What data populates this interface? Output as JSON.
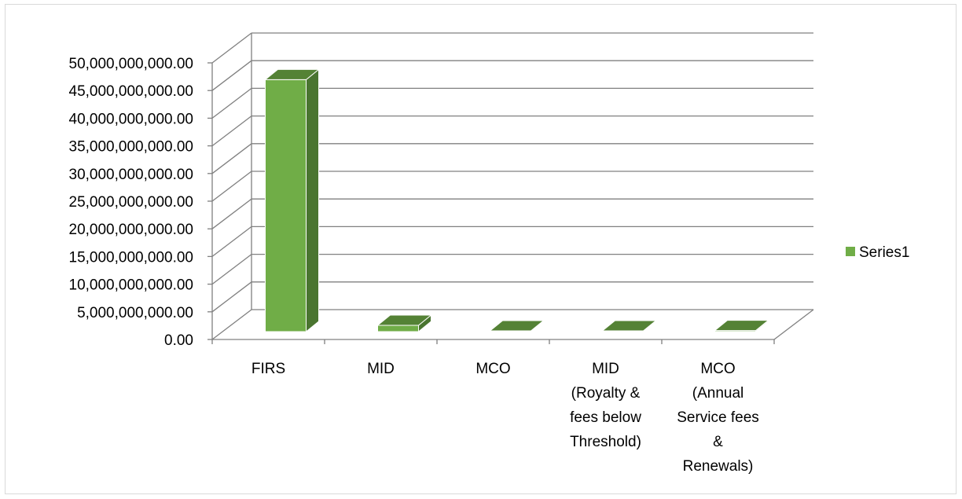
{
  "chart_data": {
    "type": "bar",
    "style": "3d-column",
    "categories": [
      [
        "FIRS"
      ],
      [
        "MID"
      ],
      [
        "MCO"
      ],
      [
        "MID",
        "(Royalty &",
        "fees below",
        "Threshold)"
      ],
      [
        "MCO",
        "(Annual",
        "Service fees",
        "&",
        "Renewals)"
      ]
    ],
    "series": [
      {
        "name": "Series1",
        "values": [
          48000000000,
          1200000000,
          150000000,
          150000000,
          200000000
        ]
      }
    ],
    "ylim": [
      0,
      50000000000
    ],
    "yticks": [
      "0.00",
      "5,000,000,000.00",
      "10,000,000,000.00",
      "15,000,000,000.00",
      "20,000,000,000.00",
      "25,000,000,000.00",
      "30,000,000,000.00",
      "35,000,000,000.00",
      "40,000,000,000.00",
      "45,000,000,000.00",
      "50,000,000,000.00"
    ],
    "grid": true,
    "legend_position": "right",
    "colors": {
      "bar_front": "#70ad47",
      "bar_top": "#548235",
      "bar_side": "#4a7530",
      "grid": "#808080"
    }
  }
}
